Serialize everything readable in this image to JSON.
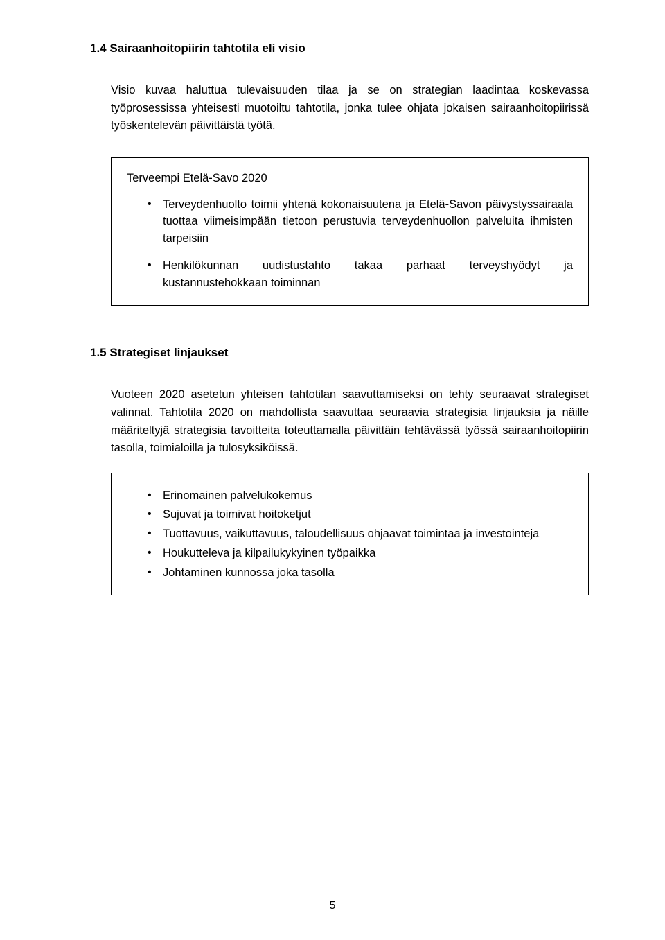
{
  "colors": {
    "text": "#000000",
    "background": "#ffffff",
    "border": "#000000"
  },
  "section_1_4": {
    "heading": "1.4  Sairaanhoitopiirin tahtotila eli visio",
    "para": "Visio kuvaa haluttua tulevaisuuden tilaa ja se on strategian laadintaa koskevassa työprosessissa yhteisesti muotoiltu tahtotila, jonka tulee ohjata jokaisen sairaanhoitopiirissä työskentelevän päivittäistä työtä."
  },
  "box1": {
    "title": "Terveempi Etelä-Savo 2020",
    "bullets": [
      "Terveydenhuolto toimii yhtenä kokonaisuutena ja Etelä-Savon päivystyssairaala tuottaa viimeisimpään tietoon perustuvia terveydenhuollon palveluita ihmisten tarpeisiin",
      "Henkilökunnan uudistustahto takaa parhaat terveyshyödyt ja kustannustehokkaan toiminnan"
    ]
  },
  "section_1_5": {
    "heading": "1.5  Strategiset linjaukset",
    "para": "Vuoteen 2020 asetetun yhteisen tahtotilan saavuttamiseksi on tehty seuraavat strategiset valinnat. Tahtotila 2020 on mahdollista saavuttaa seuraavia strategisia linjauksia ja näille määriteltyjä strategisia tavoitteita toteuttamalla päivittäin tehtävässä työssä sairaanhoitopiirin tasolla, toimialoilla ja tulosyksiköissä."
  },
  "box2": {
    "bullets": [
      "Erinomainen palvelukokemus",
      "Sujuvat ja toimivat hoitoketjut",
      "Tuottavuus, vaikuttavuus, taloudellisuus ohjaavat toimintaa ja investointeja",
      "Houkutteleva ja kilpailukykyinen työpaikka",
      "Johtaminen kunnossa joka tasolla"
    ]
  },
  "page_number": "5"
}
